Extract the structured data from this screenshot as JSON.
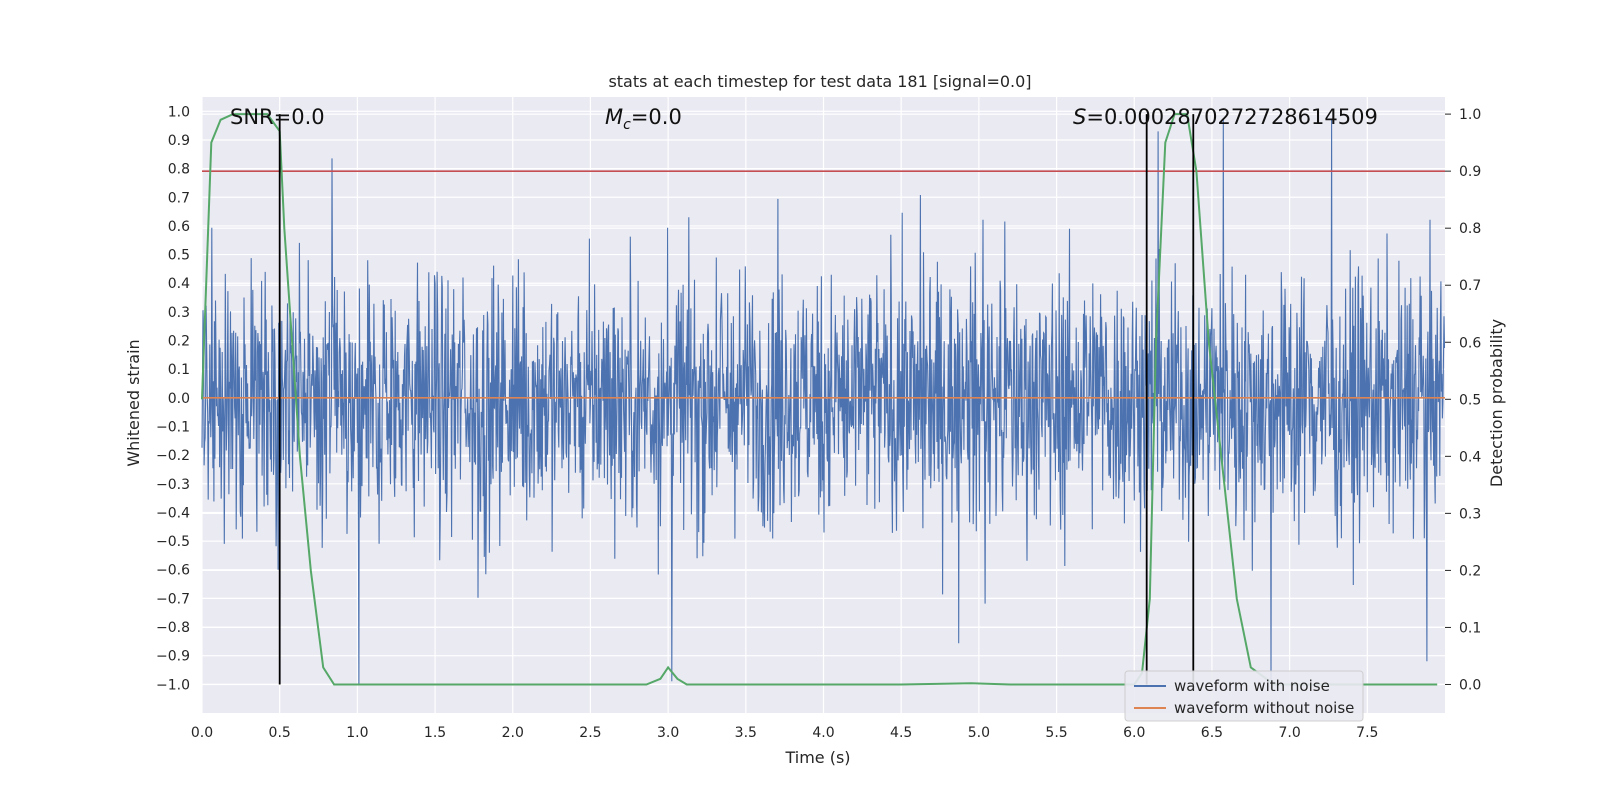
{
  "chart_data": {
    "type": "line",
    "title": "stats at each timestep for test data 181 [signal=0.0]",
    "xlabel": "Time (s)",
    "ylabel_left": "Whitened strain",
    "ylabel_right": "Detection probability",
    "xlim": [
      0.0,
      8.0
    ],
    "ylim_left": [
      -1.1,
      1.05
    ],
    "ylim_right": [
      -0.05,
      1.03
    ],
    "x_ticks": [
      "0.0",
      "0.5",
      "1.0",
      "1.5",
      "2.0",
      "2.5",
      "3.0",
      "3.5",
      "4.0",
      "4.5",
      "5.0",
      "5.5",
      "6.0",
      "6.5",
      "7.0",
      "7.5"
    ],
    "x_tick_values": [
      0.0,
      0.5,
      1.0,
      1.5,
      2.0,
      2.5,
      3.0,
      3.5,
      4.0,
      4.5,
      5.0,
      5.5,
      6.0,
      6.5,
      7.0,
      7.5
    ],
    "y_left_ticks": [
      "1.0",
      "0.9",
      "0.8",
      "0.7",
      "0.6",
      "0.5",
      "0.4",
      "0.3",
      "0.2",
      "0.1",
      "0.0",
      "−0.1",
      "−0.2",
      "−0.3",
      "−0.4",
      "−0.5",
      "−0.6",
      "−0.7",
      "−0.8",
      "−0.9",
      "−1.0"
    ],
    "y_left_tick_values": [
      1.0,
      0.9,
      0.8,
      0.7,
      0.6,
      0.5,
      0.4,
      0.3,
      0.2,
      0.1,
      0.0,
      -0.1,
      -0.2,
      -0.3,
      -0.4,
      -0.5,
      -0.6,
      -0.7,
      -0.8,
      -0.9,
      -1.0
    ],
    "y_right_ticks": [
      "1.0",
      "0.9",
      "0.8",
      "0.7",
      "0.6",
      "0.5",
      "0.4",
      "0.3",
      "0.2",
      "0.1",
      "0.0"
    ],
    "y_right_tick_values": [
      1.0,
      0.9,
      0.8,
      0.7,
      0.6,
      0.5,
      0.4,
      0.3,
      0.2,
      0.1,
      0.0
    ],
    "annotations": {
      "snr": "SNR=0.0",
      "mc_symbol": "M",
      "mc_sub": "c",
      "mc_value": "=0.0",
      "s_symbol": "S",
      "s_value": "=0.00028702727286145 09"
    },
    "threshold_probability": 0.9,
    "vertical_lines_s": [
      0.5,
      6.08,
      6.38
    ],
    "series": [
      {
        "name": "waveform with noise",
        "color": "#4c72b0",
        "axis": "left",
        "description_range": [
          -1.0,
          0.97
        ]
      },
      {
        "name": "waveform without noise",
        "color": "#dd8452",
        "axis": "left",
        "constant": 0.0
      },
      {
        "name": "detection probability",
        "color": "#55a868",
        "axis": "right",
        "x": [
          0.0,
          0.06,
          0.12,
          0.2,
          0.3,
          0.42,
          0.5,
          0.53,
          0.58,
          0.63,
          0.7,
          0.78,
          0.85,
          0.95,
          1.2,
          2.0,
          2.5,
          2.86,
          2.95,
          3.0,
          3.06,
          3.12,
          3.2,
          3.5,
          4.0,
          4.5,
          4.95,
          5.2,
          5.8,
          6.0,
          6.05,
          6.1,
          6.14,
          6.2,
          6.26,
          6.34,
          6.4,
          6.48,
          6.58,
          6.66,
          6.75,
          6.9,
          7.2,
          7.6,
          7.95
        ],
        "y": [
          0.5,
          0.95,
          0.99,
          1.0,
          1.0,
          1.0,
          0.97,
          0.8,
          0.6,
          0.4,
          0.2,
          0.03,
          0.0,
          0.0,
          0.0,
          0.0,
          0.0,
          0.0,
          0.01,
          0.03,
          0.01,
          0.0,
          0.0,
          0.0,
          0.0,
          0.0,
          0.002,
          0.0,
          0.0,
          0.0,
          0.02,
          0.15,
          0.6,
          0.95,
          1.0,
          1.0,
          0.9,
          0.6,
          0.35,
          0.15,
          0.03,
          0.0,
          0.0,
          0.0,
          0.0
        ]
      }
    ],
    "legend": [
      "waveform with noise",
      "waveform without noise"
    ],
    "legend_position": "lower-right",
    "colors": {
      "background": "#eaeaf2",
      "grid": "#ffffff",
      "threshold": "#c44e52",
      "vline": "#000000"
    }
  }
}
